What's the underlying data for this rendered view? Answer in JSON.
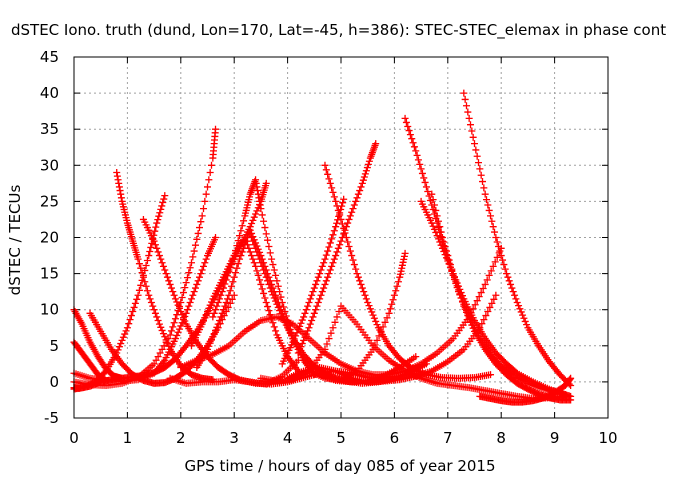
{
  "chart_data": {
    "type": "scatter",
    "title": "dSTEC Iono. truth (dund, Lon=170, Lat=-45, h=386): STEC-STEC_elemax in phase cont",
    "xlabel": "GPS time / hours of day 085 of year 2015",
    "ylabel": "dSTEC  / TECUs",
    "xlim": [
      0,
      10
    ],
    "ylim": [
      -5,
      45
    ],
    "xticks": [
      "0",
      "1",
      "2",
      "3",
      "4",
      "5",
      "6",
      "7",
      "8",
      "9",
      "10"
    ],
    "yticks": [
      "-5",
      "0",
      "5",
      "10",
      "15",
      "20",
      "25",
      "30",
      "35",
      "40",
      "45"
    ],
    "grid": true,
    "legend": "none",
    "marker": "+",
    "color": "#ff0000",
    "series": [
      {
        "x": [
          0.0,
          0.3,
          0.6,
          0.9,
          1.2,
          1.5,
          1.8,
          2.0,
          2.2,
          2.4,
          2.6,
          2.65
        ],
        "y": [
          0.0,
          -0.4,
          -0.5,
          -0.2,
          0.6,
          2.5,
          6.5,
          11.0,
          16.5,
          23.0,
          31.0,
          35.0
        ]
      },
      {
        "x": [
          0.0,
          0.3,
          0.6,
          0.9,
          1.2,
          1.5,
          1.7,
          1.9,
          2.1,
          2.3,
          2.5,
          2.65
        ],
        "y": [
          1.2,
          0.5,
          0.2,
          0.1,
          0.3,
          1.2,
          3.0,
          6.0,
          9.5,
          13.5,
          17.5,
          20.0
        ]
      },
      {
        "x": [
          0.0,
          0.2,
          0.4,
          0.6,
          0.8,
          1.0,
          1.2,
          1.4,
          1.55,
          1.7
        ],
        "y": [
          -1.0,
          -0.7,
          0.0,
          1.5,
          4.0,
          7.5,
          12.0,
          17.5,
          22.0,
          25.8
        ]
      },
      {
        "x": [
          0.0,
          0.1,
          0.3,
          0.5,
          0.7,
          0.9,
          1.1,
          1.3,
          1.5,
          1.7,
          1.9,
          2.1,
          2.3,
          2.5,
          2.7,
          2.9,
          3.1,
          3.3,
          3.5,
          3.6
        ],
        "y": [
          -0.8,
          -0.9,
          -0.6,
          0.0,
          0.3,
          0.5,
          0.7,
          0.9,
          1.3,
          2.0,
          3.2,
          5.0,
          7.0,
          9.5,
          12.5,
          15.5,
          18.5,
          21.5,
          25.0,
          27.5
        ]
      },
      {
        "x": [
          0.0,
          0.15,
          0.3,
          0.45,
          0.6,
          0.75,
          0.9
        ],
        "y": [
          10.0,
          8.0,
          5.5,
          3.5,
          1.8,
          0.8,
          0.5
        ]
      },
      {
        "x": [
          0.0,
          0.15,
          0.3,
          0.45,
          0.6
        ],
        "y": [
          5.5,
          4.0,
          2.5,
          1.0,
          0.2
        ]
      },
      {
        "x": [
          0.3,
          0.5,
          0.7,
          0.9,
          1.1,
          1.3,
          1.5,
          1.7,
          1.9,
          2.1,
          2.3,
          2.5,
          2.7,
          3.0
        ],
        "y": [
          9.5,
          7.0,
          4.5,
          2.5,
          1.0,
          0.2,
          -0.2,
          -0.1,
          0.5,
          1.5,
          3.0,
          5.0,
          7.5,
          12.0
        ]
      },
      {
        "x": [
          0.8,
          0.9,
          1.0,
          1.1,
          1.2,
          1.4,
          1.6,
          1.8,
          2.0,
          2.2,
          2.4,
          2.6
        ],
        "y": [
          29.0,
          25.0,
          22.0,
          19.5,
          17.0,
          12.0,
          8.0,
          4.5,
          2.2,
          1.0,
          0.5,
          0.3
        ]
      },
      {
        "x": [
          1.3,
          1.5,
          1.7,
          1.9,
          2.1,
          2.3,
          2.5,
          2.7,
          2.9,
          3.1,
          3.4,
          3.7,
          4.0,
          4.3,
          4.6,
          4.9,
          5.2,
          5.5,
          5.8,
          6.1,
          6.4
        ],
        "y": [
          22.5,
          19.5,
          15.5,
          11.5,
          8.0,
          5.5,
          3.5,
          2.0,
          1.0,
          0.3,
          -0.2,
          -0.3,
          0.0,
          0.6,
          1.2,
          1.5,
          1.2,
          0.6,
          0.3,
          0.4,
          0.8
        ]
      },
      {
        "x": [
          2.0,
          2.3,
          2.6,
          2.9,
          3.2,
          3.5,
          3.8,
          4.1,
          4.4,
          4.7,
          5.0,
          5.3,
          5.6,
          5.9,
          6.2,
          6.5,
          6.8,
          7.1,
          7.4,
          7.7,
          8.0
        ],
        "y": [
          2.0,
          3.0,
          3.8,
          5.0,
          7.0,
          8.5,
          9.0,
          8.0,
          6.0,
          4.0,
          2.5,
          1.5,
          1.0,
          1.0,
          1.5,
          2.5,
          4.0,
          6.0,
          9.0,
          13.5,
          18.5
        ]
      },
      {
        "x": [
          1.8,
          2.1,
          2.4,
          2.7,
          3.0,
          3.3,
          3.6,
          3.9,
          4.2
        ],
        "y": [
          0.5,
          -0.2,
          0.0,
          0.0,
          0.3,
          0.0,
          -0.3,
          0.8,
          3.0
        ]
      },
      {
        "x": [
          2.2,
          2.4,
          2.6,
          2.8,
          3.0,
          3.2,
          3.4,
          3.6,
          3.8,
          4.0,
          4.2
        ],
        "y": [
          5.0,
          8.0,
          11.5,
          14.5,
          17.5,
          20.0,
          16.0,
          11.0,
          6.5,
          3.5,
          1.5
        ]
      },
      {
        "x": [
          2.6,
          2.8,
          3.0,
          3.2,
          3.3,
          3.4,
          3.5,
          3.7,
          3.9,
          4.1,
          4.3,
          4.6,
          4.9,
          5.2,
          5.5,
          5.8,
          6.1,
          6.4
        ],
        "y": [
          9.0,
          13.0,
          17.5,
          23.0,
          26.0,
          28.0,
          24.0,
          17.0,
          11.0,
          6.0,
          3.0,
          1.0,
          0.2,
          0.0,
          0.2,
          0.8,
          2.0,
          3.5
        ]
      },
      {
        "x": [
          2.3,
          2.5,
          2.7,
          2.9,
          3.1,
          3.3,
          3.5,
          3.7,
          3.9,
          4.1,
          4.3,
          4.5
        ],
        "y": [
          2.0,
          4.5,
          8.0,
          12.0,
          17.0,
          21.0,
          17.5,
          13.5,
          9.5,
          6.0,
          3.0,
          1.0
        ]
      },
      {
        "x": [
          3.3,
          3.5,
          3.7,
          3.9,
          4.1,
          4.3,
          4.5,
          4.7,
          4.9,
          5.1,
          5.4,
          5.7,
          6.0,
          6.3,
          6.6
        ],
        "y": [
          20.5,
          16.5,
          12.5,
          9.0,
          6.0,
          3.8,
          2.2,
          1.2,
          0.5,
          0.1,
          -0.2,
          0.0,
          0.5,
          1.3,
          2.5
        ]
      },
      {
        "x": [
          3.5,
          3.8,
          4.1,
          4.4,
          4.7,
          5.0,
          5.3,
          5.6,
          5.9,
          6.2,
          6.5,
          6.8,
          7.1,
          7.4,
          7.7,
          8.0,
          8.3,
          8.6,
          8.9,
          9.2
        ],
        "y": [
          0.5,
          0.1,
          0.3,
          1.5,
          4.5,
          10.5,
          8.0,
          5.0,
          3.0,
          1.5,
          0.5,
          -0.2,
          -0.5,
          -0.8,
          -1.2,
          -1.6,
          -2.0,
          -2.3,
          -2.2,
          -2.0
        ]
      },
      {
        "x": [
          3.9,
          4.1,
          4.3,
          4.5,
          4.7,
          4.9,
          5.05
        ],
        "y": [
          2.5,
          5.5,
          9.0,
          13.0,
          17.0,
          21.5,
          25.3
        ]
      },
      {
        "x": [
          4.7,
          4.9,
          5.1,
          5.3,
          5.5,
          5.7,
          5.9,
          6.1,
          6.3,
          6.6,
          6.9,
          7.2,
          7.5,
          7.8
        ],
        "y": [
          30.0,
          25.0,
          20.0,
          15.0,
          11.0,
          7.5,
          5.0,
          3.2,
          2.0,
          1.0,
          0.6,
          0.5,
          0.6,
          1.0
        ]
      },
      {
        "x": [
          4.2,
          4.4,
          4.6,
          4.8,
          5.0,
          5.2,
          5.4,
          5.55,
          5.65
        ],
        "y": [
          4.0,
          7.5,
          11.5,
          15.5,
          19.5,
          23.5,
          27.5,
          31.0,
          33.0
        ]
      },
      {
        "x": [
          4.4,
          4.7,
          5.0,
          5.3,
          5.6,
          5.9,
          6.1,
          6.2
        ],
        "y": [
          1.5,
          0.5,
          0.3,
          1.5,
          4.5,
          9.5,
          14.5,
          17.8
        ]
      },
      {
        "x": [
          4.0,
          4.3,
          4.6,
          4.9,
          5.2,
          5.5,
          5.8,
          6.1,
          6.4,
          6.7,
          7.0,
          7.3,
          7.6,
          7.9
        ],
        "y": [
          0.5,
          1.5,
          2.0,
          1.5,
          0.5,
          0.0,
          0.1,
          0.3,
          0.8,
          1.5,
          2.8,
          4.5,
          7.5,
          12.0
        ]
      },
      {
        "x": [
          6.2,
          6.4,
          6.6,
          6.8,
          7.0,
          7.2,
          7.4,
          7.6,
          7.8,
          8.0,
          8.2,
          8.5,
          8.8,
          9.1,
          9.3
        ],
        "y": [
          36.5,
          32.0,
          27.0,
          22.0,
          17.0,
          12.5,
          9.0,
          6.0,
          3.8,
          2.2,
          1.0,
          -0.2,
          -1.0,
          -1.5,
          -2.0
        ]
      },
      {
        "x": [
          6.7,
          6.9,
          7.1,
          7.3,
          7.5,
          7.7,
          7.9,
          8.1,
          8.3,
          8.5,
          8.7,
          8.9,
          9.1,
          9.3
        ],
        "y": [
          26.0,
          20.0,
          15.0,
          10.5,
          7.0,
          4.5,
          2.5,
          1.0,
          -0.2,
          -1.0,
          -1.7,
          -2.2,
          -2.5,
          -2.5
        ]
      },
      {
        "x": [
          7.3,
          7.5,
          7.7,
          7.9,
          8.1,
          8.3,
          8.5,
          8.7,
          8.9,
          9.1,
          9.3
        ],
        "y": [
          40.0,
          33.0,
          26.0,
          20.0,
          15.0,
          11.0,
          7.5,
          5.0,
          2.8,
          1.0,
          -0.5
        ]
      },
      {
        "x": [
          6.5,
          6.7,
          6.9,
          7.1,
          7.3,
          7.5,
          7.7,
          7.9,
          8.1,
          8.3,
          8.6,
          8.9,
          9.2
        ],
        "y": [
          25.0,
          22.0,
          18.5,
          15.0,
          11.5,
          8.5,
          6.0,
          4.0,
          2.5,
          1.2,
          0.0,
          -1.0,
          -1.8
        ]
      },
      {
        "x": [
          7.6,
          7.8,
          8.0,
          8.2,
          8.4,
          8.6,
          8.8,
          9.0,
          9.2,
          9.3
        ],
        "y": [
          -2.0,
          -2.3,
          -2.6,
          -2.8,
          -2.8,
          -2.6,
          -2.2,
          -1.5,
          -0.5,
          0.5
        ]
      }
    ]
  }
}
